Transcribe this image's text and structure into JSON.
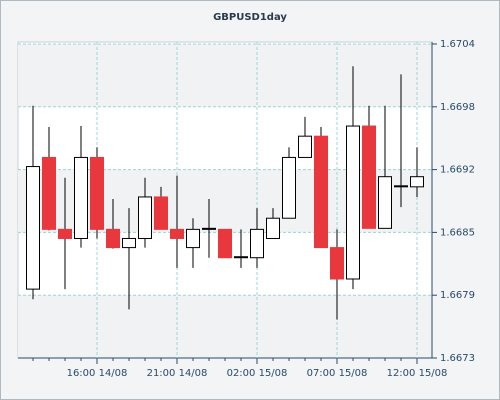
{
  "chart_data": {
    "type": "candlestick",
    "title": "GBPUSD1day",
    "categories": [
      null,
      null,
      null,
      null,
      "16:00 14/08",
      null,
      null,
      null,
      null,
      "21:00 14/08",
      null,
      null,
      null,
      null,
      "02:00 15/08",
      null,
      null,
      null,
      null,
      "07:00 15/08",
      null,
      null,
      null,
      null,
      "12:00 15/08"
    ],
    "open": [
      1.66798,
      1.66928,
      1.66857,
      1.66848,
      1.66928,
      1.66857,
      1.66839,
      1.66848,
      1.66889,
      1.66857,
      1.66839,
      1.66857,
      1.66857,
      1.66829,
      1.66829,
      1.66848,
      1.66868,
      1.66928,
      1.66949,
      1.66839,
      1.66808,
      1.66959,
      1.66858,
      1.66899,
      1.66899
    ],
    "high": [
      1.66979,
      1.66958,
      1.66908,
      1.66959,
      1.66938,
      1.66887,
      1.66878,
      1.66908,
      1.66899,
      1.6691,
      1.66868,
      1.66887,
      1.66857,
      1.66857,
      1.66878,
      1.66878,
      1.66938,
      1.66968,
      1.66958,
      1.66857,
      1.67018,
      1.66979,
      1.66979,
      1.6701,
      1.66938
    ],
    "low": [
      1.66788,
      1.66856,
      1.66798,
      1.66839,
      1.66848,
      1.66838,
      1.66778,
      1.66839,
      1.66857,
      1.66819,
      1.66819,
      1.66829,
      1.66829,
      1.66819,
      1.66819,
      1.66848,
      1.66868,
      1.66928,
      1.66839,
      1.66768,
      1.66798,
      1.66858,
      1.66858,
      1.66879,
      1.66889
    ],
    "close": [
      1.66919,
      1.66857,
      1.66848,
      1.66928,
      1.66857,
      1.66839,
      1.66848,
      1.66889,
      1.66857,
      1.66848,
      1.66857,
      1.66858,
      1.66829,
      1.6683,
      1.66857,
      1.66868,
      1.66928,
      1.66949,
      1.66839,
      1.66808,
      1.66959,
      1.66858,
      1.66909,
      1.669,
      1.66909
    ],
    "up_color": "#ffffff",
    "down_color": "#e8383d",
    "ylim": [
      1.6673,
      1.6704
    ],
    "yticks": [
      {
        "value": 1.6673,
        "label": "1.6673"
      },
      {
        "value": 1.66792,
        "label": "1.6679"
      },
      {
        "value": 1.66854,
        "label": "1.6685"
      },
      {
        "value": 1.66916,
        "label": "1.6692"
      },
      {
        "value": 1.66978,
        "label": "1.6698"
      },
      {
        "value": 1.6704,
        "label": "1.6704"
      }
    ],
    "grid": true
  }
}
